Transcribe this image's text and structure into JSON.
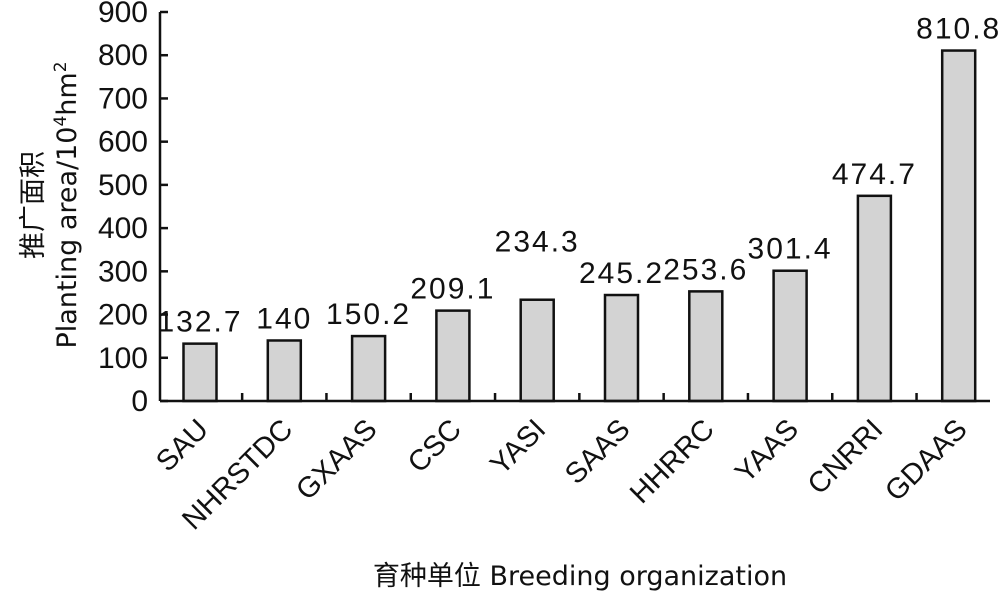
{
  "chart_data": {
    "type": "bar",
    "categories": [
      "SAU",
      "NHRSTDC",
      "GXAAS",
      "CSC",
      "YASI",
      "SAAS",
      "HHRRC",
      "YAAS",
      "CNRRI",
      "GDAAS"
    ],
    "values": [
      132.7,
      140,
      150.2,
      209.1,
      234.3,
      245.2,
      253.6,
      301.4,
      474.7,
      810.8
    ],
    "data_labels": [
      "132.7",
      "140",
      "150.2",
      "209.1",
      "234.3",
      "245.2",
      "253.6",
      "301.4",
      "474.7",
      "810.8"
    ],
    "y_ticks": [
      0,
      100,
      200,
      300,
      400,
      500,
      600,
      700,
      800,
      900
    ],
    "ylim": [
      0,
      900
    ],
    "ylabel_cn": "推广面积",
    "ylabel_en_prefix": "Planting area/10",
    "ylabel_sup1": "4",
    "ylabel_mid": "hm",
    "ylabel_sup2": "2",
    "xlabel": "育种单位 Breeding organization",
    "bar_color": "#d3d3d3",
    "bar_stroke": "#111111",
    "grid": false,
    "legend": "none"
  }
}
